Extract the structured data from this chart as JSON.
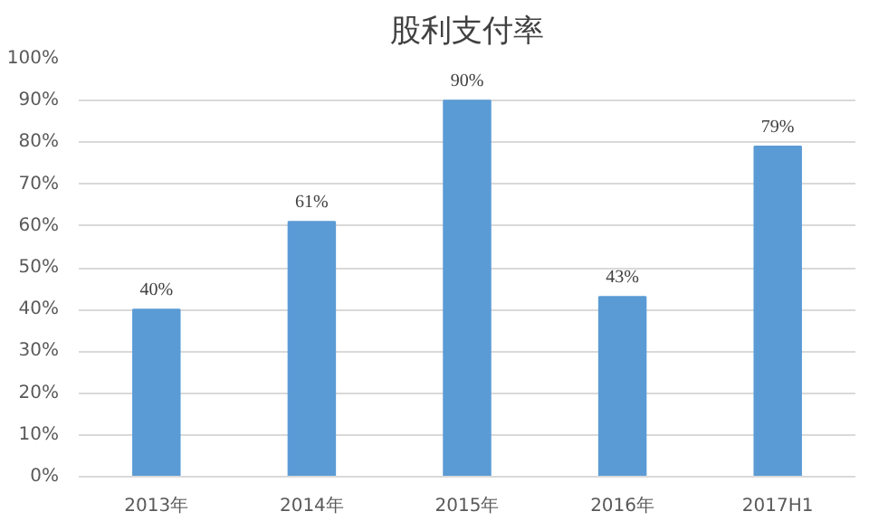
{
  "chart_data": {
    "type": "bar",
    "title": "股利支付率",
    "categories": [
      "2013年",
      "2014年",
      "2015年",
      "2016年",
      "2017H1"
    ],
    "values": [
      40,
      61,
      90,
      43,
      79
    ],
    "value_labels": [
      "40%",
      "61%",
      "90%",
      "43%",
      "79%"
    ],
    "color": "#5b9bd5",
    "ylim": [
      0,
      100
    ],
    "yticks": [
      {
        "value": 0,
        "label": "0%"
      },
      {
        "value": 10,
        "label": "10%"
      },
      {
        "value": 20,
        "label": "20%"
      },
      {
        "value": 30,
        "label": "30%"
      },
      {
        "value": 40,
        "label": "40%"
      },
      {
        "value": 50,
        "label": "50%"
      },
      {
        "value": 60,
        "label": "60%"
      },
      {
        "value": 70,
        "label": "70%"
      },
      {
        "value": 80,
        "label": "80%"
      },
      {
        "value": 90,
        "label": "90%"
      },
      {
        "value": 100,
        "label": "100%"
      }
    ],
    "grid": "y"
  }
}
